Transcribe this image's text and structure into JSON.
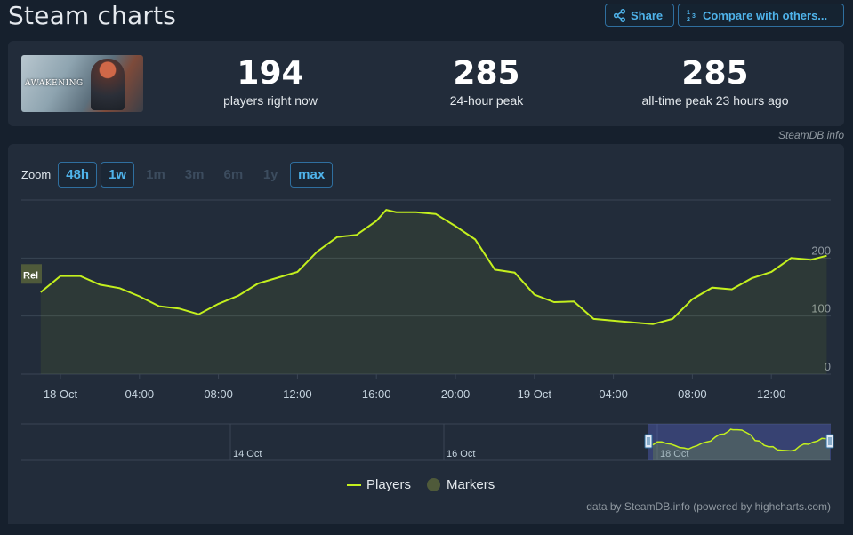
{
  "page": {
    "title": "Steam charts"
  },
  "toolbar": {
    "share_label": "Share",
    "compare_label": "Compare with others..."
  },
  "game": {
    "capsule_title": "AWAKENING"
  },
  "stats": [
    {
      "value": "194",
      "label": "players right now"
    },
    {
      "value": "285",
      "label": "24-hour peak"
    },
    {
      "value": "285",
      "label": "all-time peak 23 hours ago"
    }
  ],
  "credits": {
    "steamdb": "SteamDB.info",
    "data_source": "data by SteamDB.info (powered by highcharts.com)"
  },
  "zoom": {
    "label": "Zoom",
    "buttons": [
      {
        "label": "48h",
        "state": "active"
      },
      {
        "label": "1w",
        "state": "active"
      },
      {
        "label": "1m",
        "state": "disabled"
      },
      {
        "label": "3m",
        "state": "disabled"
      },
      {
        "label": "6m",
        "state": "disabled"
      },
      {
        "label": "1y",
        "state": "disabled"
      },
      {
        "label": "max",
        "state": "active"
      }
    ]
  },
  "legend": {
    "players": "Players",
    "markers": "Markers"
  },
  "colors": {
    "series": "#c4f01e",
    "marker": "#4f5a3a",
    "accent": "#4fb3ea",
    "panel": "#222c3a"
  },
  "chart_data": {
    "type": "line",
    "series": [
      {
        "name": "Players",
        "points": [
          [
            -1.0,
            141
          ],
          [
            0.0,
            169
          ],
          [
            1.0,
            169
          ],
          [
            2.0,
            154
          ],
          [
            3.0,
            148
          ],
          [
            4.0,
            134
          ],
          [
            5.0,
            117
          ],
          [
            6.0,
            113
          ],
          [
            7.0,
            103
          ],
          [
            8.0,
            121
          ],
          [
            9.0,
            135
          ],
          [
            10.0,
            156
          ],
          [
            11.0,
            166
          ],
          [
            12.0,
            176
          ],
          [
            13.0,
            211
          ],
          [
            14.0,
            236
          ],
          [
            15.0,
            240
          ],
          [
            16.0,
            264
          ],
          [
            16.5,
            283
          ],
          [
            17.0,
            279
          ],
          [
            18.0,
            279
          ],
          [
            19.0,
            276
          ],
          [
            20.0,
            255
          ],
          [
            21.0,
            232
          ],
          [
            22.0,
            180
          ],
          [
            23.0,
            175
          ],
          [
            24.0,
            137
          ],
          [
            25.0,
            124
          ],
          [
            26.0,
            125
          ],
          [
            27.0,
            95
          ],
          [
            28.0,
            92
          ],
          [
            29.0,
            89
          ],
          [
            30.0,
            86
          ],
          [
            31.0,
            95
          ],
          [
            32.0,
            129
          ],
          [
            33.0,
            149
          ],
          [
            34.0,
            146
          ],
          [
            35.0,
            165
          ],
          [
            36.0,
            176
          ],
          [
            37.0,
            200
          ],
          [
            38.0,
            197
          ],
          [
            38.8,
            204
          ]
        ]
      }
    ],
    "marker": {
      "label": "Rel",
      "y": 171
    },
    "x_axis": {
      "ticks": [
        {
          "label": "18 Oct",
          "x": 0
        },
        {
          "label": "04:00",
          "x": 4
        },
        {
          "label": "08:00",
          "x": 8
        },
        {
          "label": "12:00",
          "x": 12
        },
        {
          "label": "16:00",
          "x": 16
        },
        {
          "label": "20:00",
          "x": 20
        },
        {
          "label": "19 Oct",
          "x": 24
        },
        {
          "label": "04:00",
          "x": 28
        },
        {
          "label": "08:00",
          "x": 32
        },
        {
          "label": "12:00",
          "x": 36
        }
      ]
    },
    "y_axis": {
      "ticks": [
        0,
        100,
        200
      ],
      "ylim": [
        0,
        300
      ]
    },
    "navigator": {
      "labels": [
        "14 Oct",
        "16 Oct",
        "18 Oct"
      ]
    }
  }
}
